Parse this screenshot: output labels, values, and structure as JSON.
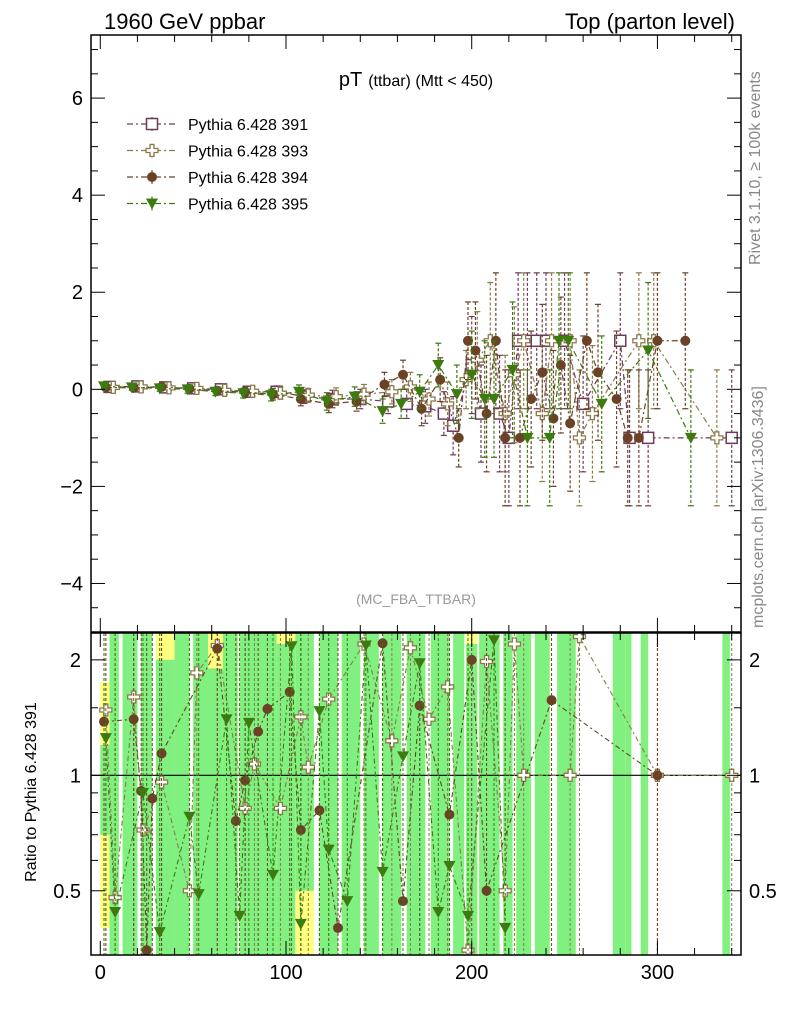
{
  "header": {
    "left": "1960 GeV ppbar",
    "right": "Top (parton level)"
  },
  "side_labels": {
    "upper": "Rivet 3.1.10, ≥ 100k events",
    "lower": "mcplots.cern.ch [arXiv:1306.3436]"
  },
  "chart_data": [
    {
      "type": "scatter",
      "title_main": "pT",
      "title_sub": "(ttbar) (Mtt < 450)",
      "annotation": "(MC_FBA_TTBAR)",
      "xlabel": "",
      "ylabel": "",
      "xlim": [
        -5,
        345
      ],
      "ylim": [
        -5.0,
        7.3
      ],
      "grid": false,
      "legend_position": "top-left",
      "y_ticks": [
        -4,
        -2,
        0,
        2,
        4,
        6
      ],
      "y_tick_labels": [
        "−4",
        "−2",
        "0",
        "2",
        "4",
        "6"
      ],
      "series": [
        {
          "name": "Pythia 6.428 391",
          "color": "#6e3a5a",
          "marker": "open-square",
          "x": [
            5,
            20,
            35,
            50,
            65,
            80,
            95,
            110,
            125,
            140,
            155,
            165,
            175,
            185,
            190,
            200,
            205,
            215,
            220,
            225,
            230,
            235,
            240,
            250,
            260,
            280,
            285,
            295,
            340
          ],
          "y": [
            0.05,
            0.06,
            0.04,
            0.02,
            0.0,
            -0.05,
            -0.05,
            -0.15,
            -0.2,
            -0.2,
            -0.25,
            -0.3,
            -0.35,
            -0.5,
            -0.75,
            0.5,
            -0.5,
            -0.5,
            -1.0,
            1.0,
            1.0,
            1.0,
            1.0,
            1.0,
            -0.3,
            1.0,
            -1.0,
            -1.0,
            -1.0
          ],
          "err": [
            0.06,
            0.06,
            0.06,
            0.08,
            0.08,
            0.1,
            0.12,
            0.14,
            0.18,
            0.2,
            0.25,
            0.3,
            0.35,
            0.45,
            0.6,
            1.0,
            1.0,
            1.2,
            1.4,
            1.4,
            1.4,
            1.4,
            1.4,
            1.4,
            1.4,
            1.4,
            1.4,
            1.4,
            1.4
          ]
        },
        {
          "name": "Pythia 6.428 393",
          "color": "#8c7a4a",
          "marker": "open-cross",
          "x": [
            7,
            22,
            37,
            52,
            67,
            82,
            97,
            112,
            127,
            142,
            157,
            167,
            177,
            187,
            197,
            203,
            210,
            218,
            223,
            228,
            238,
            243,
            253,
            258,
            265,
            290,
            298,
            332
          ],
          "y": [
            0.04,
            0.05,
            0.03,
            0.02,
            -0.02,
            -0.04,
            -0.08,
            -0.12,
            -0.15,
            -0.1,
            -0.05,
            0.05,
            -0.2,
            -0.3,
            0.2,
            0.6,
            1.0,
            -0.5,
            0.3,
            1.0,
            -0.5,
            1.0,
            1.0,
            -1.0,
            -0.5,
            1.0,
            1.0,
            -1.0
          ],
          "err": [
            0.06,
            0.06,
            0.06,
            0.08,
            0.08,
            0.1,
            0.12,
            0.14,
            0.18,
            0.2,
            0.25,
            0.3,
            0.35,
            0.45,
            0.6,
            1.0,
            1.2,
            1.2,
            1.4,
            1.4,
            1.4,
            1.4,
            1.4,
            1.4,
            1.4,
            1.4,
            1.4,
            1.4
          ]
        },
        {
          "name": "Pythia 6.428 394",
          "color": "#6b4226",
          "marker": "filled-circle",
          "x": [
            3,
            18,
            33,
            48,
            63,
            78,
            93,
            108,
            123,
            138,
            153,
            163,
            173,
            183,
            193,
            198,
            202,
            208,
            213,
            218,
            226,
            232,
            238,
            244,
            248,
            253,
            262,
            268,
            278,
            284,
            290,
            300,
            315
          ],
          "y": [
            0.04,
            0.03,
            0.05,
            0.01,
            -0.03,
            -0.06,
            -0.1,
            -0.2,
            -0.3,
            -0.25,
            0.1,
            0.3,
            -0.4,
            0.2,
            -1.0,
            1.0,
            0.8,
            -0.5,
            1.0,
            -1.0,
            -1.0,
            -0.2,
            0.35,
            -0.6,
            0.5,
            -0.7,
            1.0,
            0.35,
            -0.2,
            -1.0,
            -1.0,
            1.0,
            1.0
          ],
          "err": [
            0.06,
            0.06,
            0.06,
            0.08,
            0.08,
            0.1,
            0.12,
            0.14,
            0.18,
            0.2,
            0.25,
            0.3,
            0.35,
            0.45,
            0.6,
            0.8,
            1.0,
            1.2,
            1.4,
            1.4,
            1.4,
            1.4,
            1.4,
            1.4,
            1.4,
            1.4,
            1.4,
            1.4,
            1.4,
            1.4,
            1.4,
            1.4,
            1.4
          ]
        },
        {
          "name": "Pythia 6.428 395",
          "color": "#3d7a10",
          "marker": "filled-triangle-down",
          "x": [
            2,
            17,
            32,
            47,
            62,
            77,
            92,
            107,
            122,
            137,
            152,
            162,
            172,
            182,
            192,
            200,
            207,
            212,
            222,
            230,
            242,
            247,
            252,
            270,
            295,
            318
          ],
          "y": [
            0.06,
            0.04,
            0.02,
            0.0,
            -0.05,
            -0.08,
            -0.12,
            -0.05,
            -0.25,
            -0.15,
            -0.45,
            -0.3,
            -0.05,
            0.5,
            -0.1,
            0.3,
            -0.2,
            -0.2,
            0.4,
            -1.0,
            -1.0,
            1.0,
            1.0,
            -0.3,
            0.8,
            -1.0
          ],
          "err": [
            0.06,
            0.06,
            0.06,
            0.08,
            0.08,
            0.1,
            0.12,
            0.14,
            0.18,
            0.2,
            0.25,
            0.3,
            0.35,
            0.45,
            0.6,
            0.9,
            1.2,
            1.2,
            1.4,
            1.4,
            1.4,
            1.4,
            1.4,
            1.4,
            1.4,
            1.4
          ]
        }
      ]
    },
    {
      "type": "scatter",
      "ylabel": "Ratio to Pythia 6.428 391",
      "xlim": [
        -5,
        345
      ],
      "ylim": [
        0.34,
        2.35
      ],
      "reference_line": 1,
      "y_ticks": [
        0.5,
        1,
        2
      ],
      "y_tick_labels": [
        "0.5",
        "1",
        "2"
      ],
      "x_ticks": [
        0,
        100,
        200,
        300
      ],
      "x_tick_labels": [
        "0",
        "100",
        "200",
        "300"
      ],
      "band_colors": {
        "outer": "#ffff80",
        "inner": "#80f080"
      },
      "bands": [
        {
          "x0": 0,
          "x1": 5,
          "outer": [
            0.4,
            1.75
          ],
          "inner": [
            0.7,
            1.2
          ]
        },
        {
          "x0": 5,
          "x1": 10,
          "outer": [
            0.34,
            2.35
          ],
          "inner": [
            0.34,
            2.35
          ]
        },
        {
          "x0": 12,
          "x1": 20,
          "outer": [
            0.34,
            2.35
          ],
          "inner": [
            0.34,
            2.35
          ]
        },
        {
          "x0": 22,
          "x1": 28,
          "outer": [
            0.34,
            2.1
          ],
          "inner": [
            0.34,
            2.35
          ]
        },
        {
          "x0": 30,
          "x1": 40,
          "outer": [
            0.34,
            2.35
          ],
          "inner": [
            0.34,
            2.0
          ]
        },
        {
          "x0": 40,
          "x1": 48,
          "outer": [
            0.5,
            2.35
          ],
          "inner": [
            0.34,
            2.35
          ]
        },
        {
          "x0": 50,
          "x1": 58,
          "outer": [
            0.34,
            2.35
          ],
          "inner": [
            0.34,
            2.35
          ]
        },
        {
          "x0": 58,
          "x1": 66,
          "outer": [
            0.34,
            2.35
          ],
          "inner": [
            0.34,
            1.9
          ]
        },
        {
          "x0": 66,
          "x1": 74,
          "outer": [
            0.6,
            2.35
          ],
          "inner": [
            0.34,
            2.35
          ]
        },
        {
          "x0": 75,
          "x1": 85,
          "outer": [
            0.34,
            2.35
          ],
          "inner": [
            0.34,
            2.35
          ]
        },
        {
          "x0": 85,
          "x1": 95,
          "outer": [
            0.34,
            2.1
          ],
          "inner": [
            0.34,
            2.35
          ]
        },
        {
          "x0": 95,
          "x1": 105,
          "outer": [
            0.34,
            2.35
          ],
          "inner": [
            0.34,
            2.2
          ]
        },
        {
          "x0": 105,
          "x1": 115,
          "outer": [
            0.34,
            2.35
          ],
          "inner": [
            0.5,
            2.35
          ]
        },
        {
          "x0": 118,
          "x1": 128,
          "outer": [
            0.34,
            2.35
          ],
          "inner": [
            0.34,
            2.35
          ]
        },
        {
          "x0": 130,
          "x1": 140,
          "outer": [
            0.34,
            2.35
          ],
          "inner": [
            0.34,
            2.35
          ]
        },
        {
          "x0": 142,
          "x1": 150,
          "outer": [
            0.34,
            2.35
          ],
          "inner": [
            0.34,
            2.35
          ]
        },
        {
          "x0": 152,
          "x1": 162,
          "outer": [
            0.34,
            2.35
          ],
          "inner": [
            0.34,
            2.35
          ]
        },
        {
          "x0": 165,
          "x1": 175,
          "outer": [
            0.34,
            2.35
          ],
          "inner": [
            0.34,
            2.35
          ]
        },
        {
          "x0": 178,
          "x1": 188,
          "outer": [
            0.34,
            2.35
          ],
          "inner": [
            0.34,
            2.35
          ]
        },
        {
          "x0": 190,
          "x1": 196,
          "outer": [
            0.34,
            2.35
          ],
          "inner": [
            0.34,
            2.35
          ]
        },
        {
          "x0": 197,
          "x1": 203,
          "outer": [
            0.34,
            2.35
          ],
          "inner": [
            0.34,
            2.2
          ]
        },
        {
          "x0": 204,
          "x1": 215,
          "outer": [
            0.34,
            2.35
          ],
          "inner": [
            0.34,
            2.35
          ]
        },
        {
          "x0": 217,
          "x1": 222,
          "outer": [
            0.34,
            2.35
          ],
          "inner": [
            0.34,
            2.35
          ]
        },
        {
          "x0": 224,
          "x1": 232,
          "outer": [
            0.34,
            2.35
          ],
          "inner": [
            0.34,
            2.35
          ]
        },
        {
          "x0": 234,
          "x1": 242,
          "outer": [
            0.34,
            2.35
          ],
          "inner": [
            0.34,
            2.35
          ]
        },
        {
          "x0": 246,
          "x1": 256,
          "outer": [
            0.34,
            2.35
          ],
          "inner": [
            0.34,
            2.35
          ]
        },
        {
          "x0": 276,
          "x1": 283,
          "outer": [
            0.34,
            2.35
          ],
          "inner": [
            0.34,
            2.35
          ]
        },
        {
          "x0": 283,
          "x1": 286,
          "outer": [
            0.34,
            2.35
          ],
          "inner": [
            0.34,
            2.35
          ]
        },
        {
          "x0": 291,
          "x1": 295,
          "outer": [
            0.34,
            2.35
          ],
          "inner": [
            0.34,
            2.35
          ]
        },
        {
          "x0": 335,
          "x1": 339,
          "outer": [
            0.34,
            2.35
          ],
          "inner": [
            0.34,
            2.35
          ]
        }
      ],
      "series": [
        {
          "name": "Pythia 6.428 393",
          "color": "#8c7a4a",
          "marker": "open-cross",
          "x": [
            3,
            8,
            18,
            23,
            33,
            48,
            52,
            63,
            78,
            83,
            97,
            108,
            112,
            123,
            142,
            157,
            167,
            177,
            187,
            198,
            208,
            218,
            223,
            228,
            253,
            258,
            300,
            340
          ],
          "y": [
            1.48,
            0.48,
            1.6,
            0.72,
            0.96,
            0.5,
            1.85,
            2.18,
            0.82,
            1.07,
            0.82,
            1.42,
            1.05,
            1.58,
            2.2,
            1.23,
            2.15,
            1.4,
            1.7,
            0.35,
            1.98,
            0.5,
            2.2,
            1.0,
            1.0,
            2.3,
            1.0,
            1.0
          ]
        },
        {
          "name": "Pythia 6.428 394",
          "color": "#6b4226",
          "marker": "filled-circle",
          "x": [
            2,
            18,
            22,
            25,
            28,
            33,
            63,
            73,
            78,
            85,
            90,
            102,
            108,
            118,
            128,
            152,
            163,
            172,
            188,
            200,
            208,
            243,
            300
          ],
          "y": [
            1.38,
            1.4,
            0.91,
            0.35,
            0.87,
            1.14,
            2.14,
            0.76,
            0.97,
            1.3,
            1.49,
            1.65,
            0.72,
            0.81,
            0.4,
            2.21,
            0.47,
            1.52,
            0.79,
            2.0,
            0.5,
            1.57,
            1.0
          ]
        },
        {
          "name": "Pythia 6.428 395",
          "color": "#3d7a10",
          "marker": "filled-triangle-down",
          "x": [
            3,
            8,
            23,
            32,
            48,
            53,
            68,
            75,
            80,
            93,
            103,
            108,
            118,
            123,
            133,
            143,
            152,
            163,
            172,
            182,
            188,
            198,
            212,
            218
          ],
          "y": [
            1.25,
            0.44,
            0.9,
            0.39,
            0.78,
            0.49,
            1.4,
            0.43,
            1.37,
            0.55,
            2.17,
            0.41,
            1.47,
            0.64,
            0.47,
            2.18,
            0.56,
            1.12,
            1.96,
            0.44,
            0.58,
            0.43,
            2.25,
            0.4
          ]
        }
      ]
    }
  ]
}
